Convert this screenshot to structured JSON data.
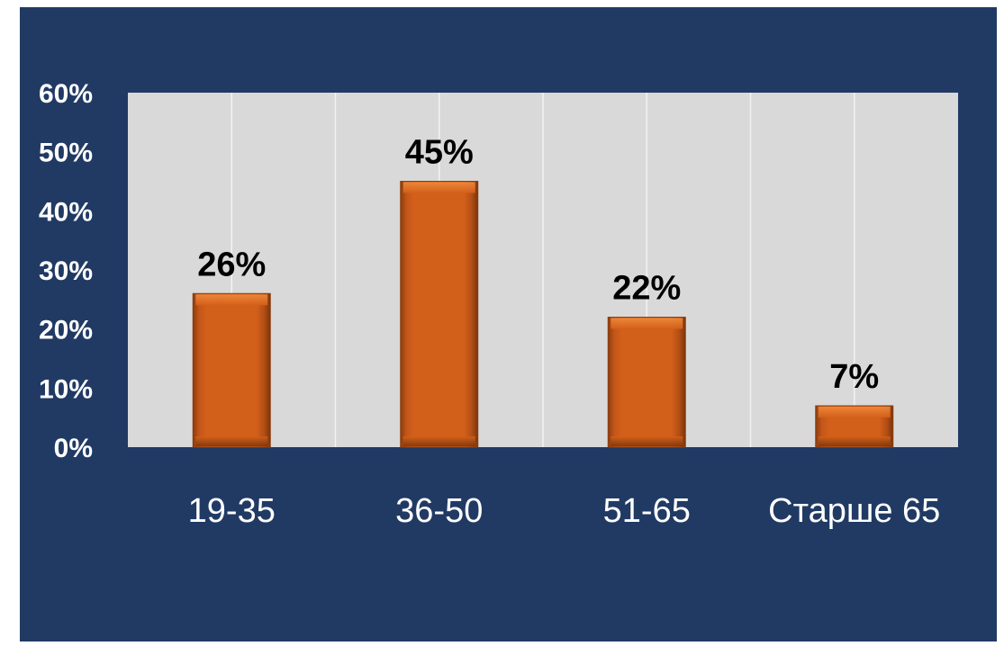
{
  "colors": {
    "background": "#213a64",
    "plot_area": "#d9d9d9",
    "gridline": "#f2f2f2",
    "bar_fill": "#d3601a",
    "bar_edge": "#8a3d0e",
    "axis_text": "#ffffff",
    "data_label": "#000000"
  },
  "chart_data": {
    "type": "bar",
    "categories": [
      "19-35",
      "36-50",
      "51-65",
      "Старше 65"
    ],
    "values": [
      26,
      45,
      22,
      7
    ],
    "value_labels": [
      "26%",
      "45%",
      "22%",
      "7%"
    ],
    "ylim": [
      0,
      60
    ],
    "yticks": [
      0,
      10,
      20,
      30,
      40,
      50,
      60
    ],
    "ytick_labels": [
      "0%",
      "10%",
      "20%",
      "30%",
      "40%",
      "50%",
      "60%"
    ],
    "grid": true,
    "legend": "none"
  }
}
